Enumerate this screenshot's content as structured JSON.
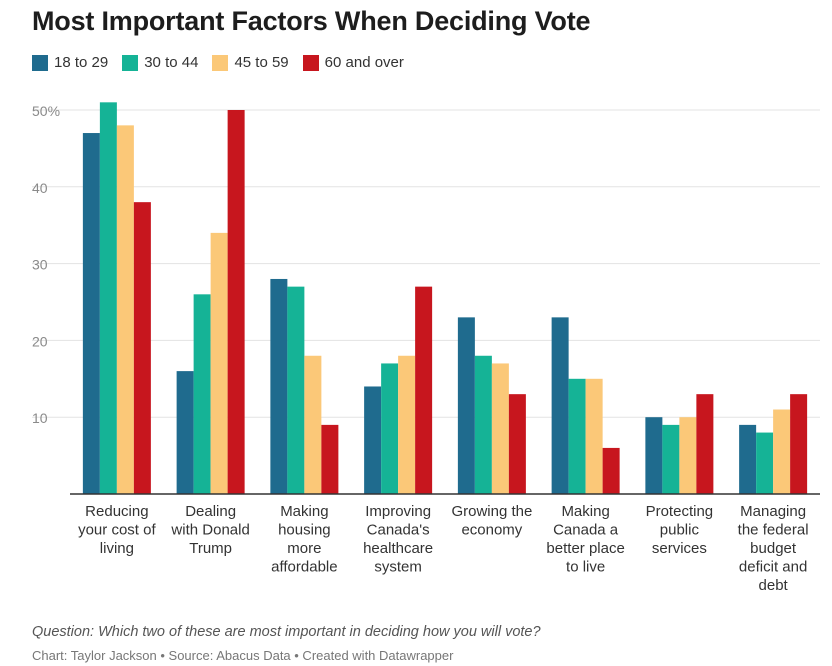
{
  "title": "Most Important Factors When Deciding Vote",
  "legend": [
    {
      "label": "18 to 29",
      "color": "#1f6b8e"
    },
    {
      "label": "30 to 44",
      "color": "#15b396"
    },
    {
      "label": "45 to 59",
      "color": "#fbc878"
    },
    {
      "label": "60 and over",
      "color": "#c7161e"
    }
  ],
  "footer": {
    "question": "Question: Which two of these are most important in deciding how you will vote?",
    "credit": "Chart: Taylor Jackson • Source: Abacus Data • Created with Datawrapper"
  },
  "chart_data": {
    "type": "bar",
    "title": "Most Important Factors When Deciding Vote",
    "xlabel": "",
    "ylabel": "",
    "ylim": [
      0,
      50
    ],
    "yticks": [
      {
        "value": 10,
        "label": "10"
      },
      {
        "value": 20,
        "label": "20"
      },
      {
        "value": 30,
        "label": "30"
      },
      {
        "value": 40,
        "label": "40"
      },
      {
        "value": 50,
        "label": "50%"
      }
    ],
    "grid": true,
    "legend_position": "top-left",
    "categories": [
      [
        "Reducing",
        "your cost of",
        "living"
      ],
      [
        "Dealing",
        "with Donald",
        "Trump"
      ],
      [
        "Making",
        "housing",
        "more",
        "affordable"
      ],
      [
        "Improving",
        "Canada's",
        "healthcare",
        "system"
      ],
      [
        "Growing the",
        "economy"
      ],
      [
        "Making",
        "Canada a",
        "better place",
        "to live"
      ],
      [
        "Protecting",
        "public",
        "services"
      ],
      [
        "Managing",
        "the federal",
        "budget",
        "deficit and",
        "debt"
      ]
    ],
    "series": [
      {
        "name": "18 to 29",
        "color": "#1f6b8e",
        "values": [
          47,
          16,
          28,
          14,
          23,
          23,
          10,
          9
        ]
      },
      {
        "name": "30 to 44",
        "color": "#15b396",
        "values": [
          51,
          26,
          27,
          17,
          18,
          15,
          9,
          8
        ]
      },
      {
        "name": "45 to 59",
        "color": "#fbc878",
        "values": [
          48,
          34,
          18,
          18,
          17,
          15,
          10,
          11
        ]
      },
      {
        "name": "60 and over",
        "color": "#c7161e",
        "values": [
          38,
          50,
          9,
          27,
          13,
          6,
          13,
          13
        ]
      }
    ]
  }
}
